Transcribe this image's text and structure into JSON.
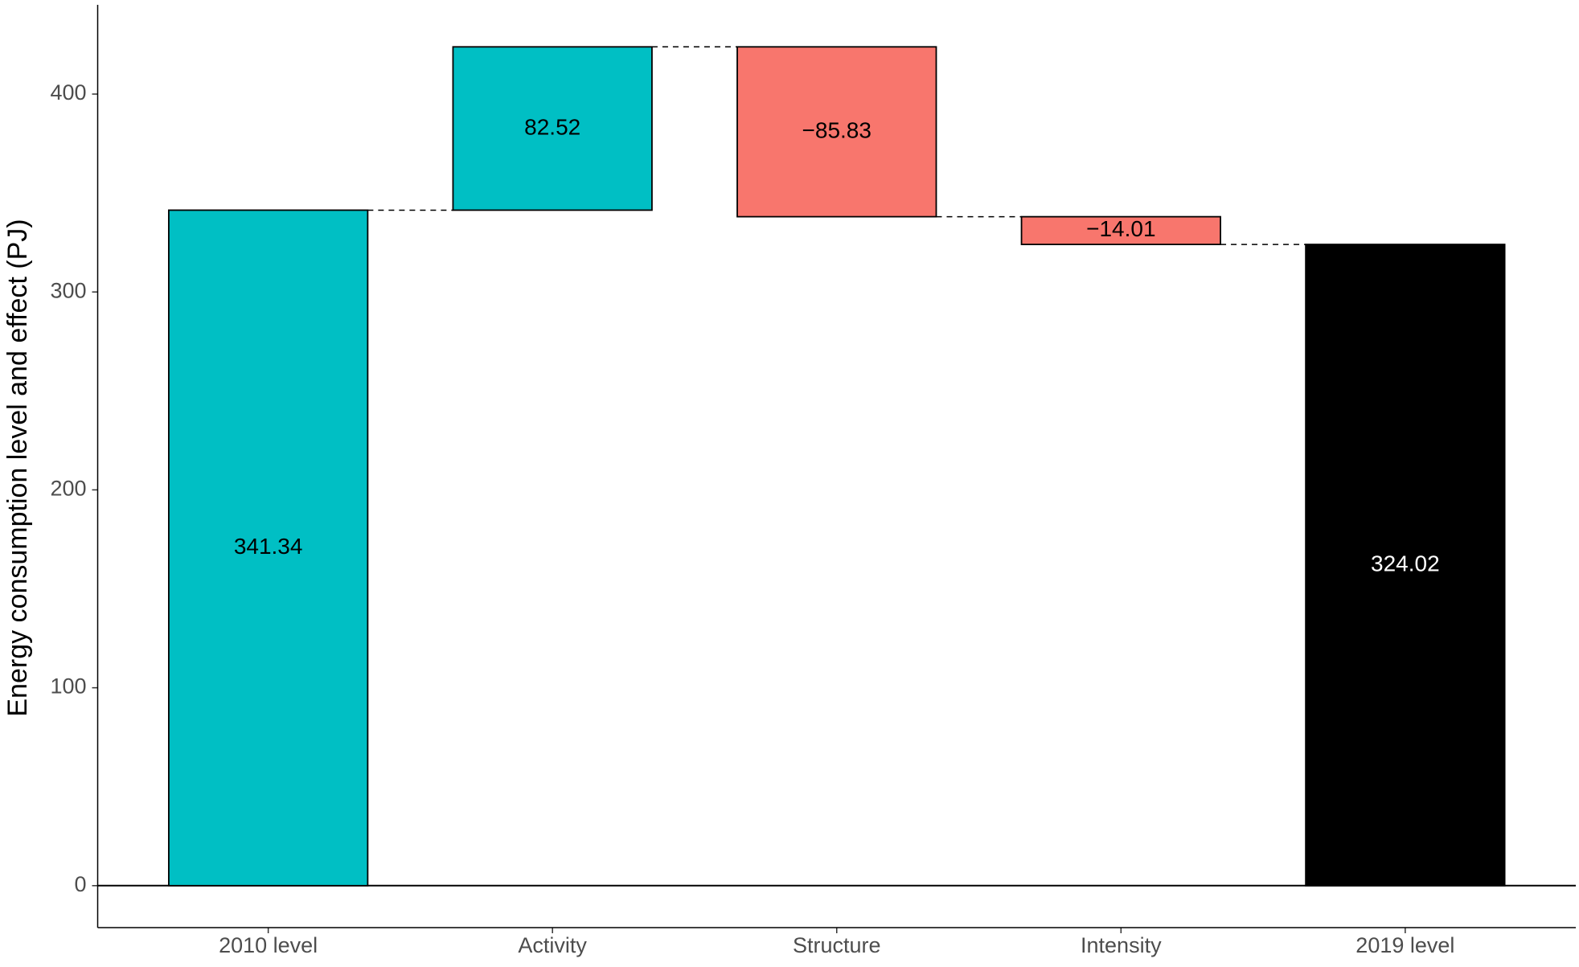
{
  "chart_data": {
    "type": "waterfall",
    "y_label": "Energy consumption level and effect (PJ)",
    "categories": [
      "2010 level",
      "Activity",
      "Structure",
      "Intensity",
      "2019 level"
    ],
    "values": [
      341.34,
      82.52,
      -85.83,
      -14.01,
      324.02
    ],
    "value_labels": [
      "341.34",
      "82.52",
      "−85.83",
      "−14.01",
      "324.02"
    ],
    "measures": [
      "absolute",
      "relative",
      "relative",
      "relative",
      "total"
    ],
    "colors": [
      "#00BFC4",
      "#00BFC4",
      "#F8766D",
      "#F8766D",
      "#000000"
    ],
    "label_colors": [
      "#000000",
      "#000000",
      "#000000",
      "#000000",
      "#ffffff"
    ],
    "ylim": [
      -21.2,
      445.1
    ],
    "yticks": [
      0,
      100,
      200,
      300,
      400
    ],
    "grid": false
  }
}
